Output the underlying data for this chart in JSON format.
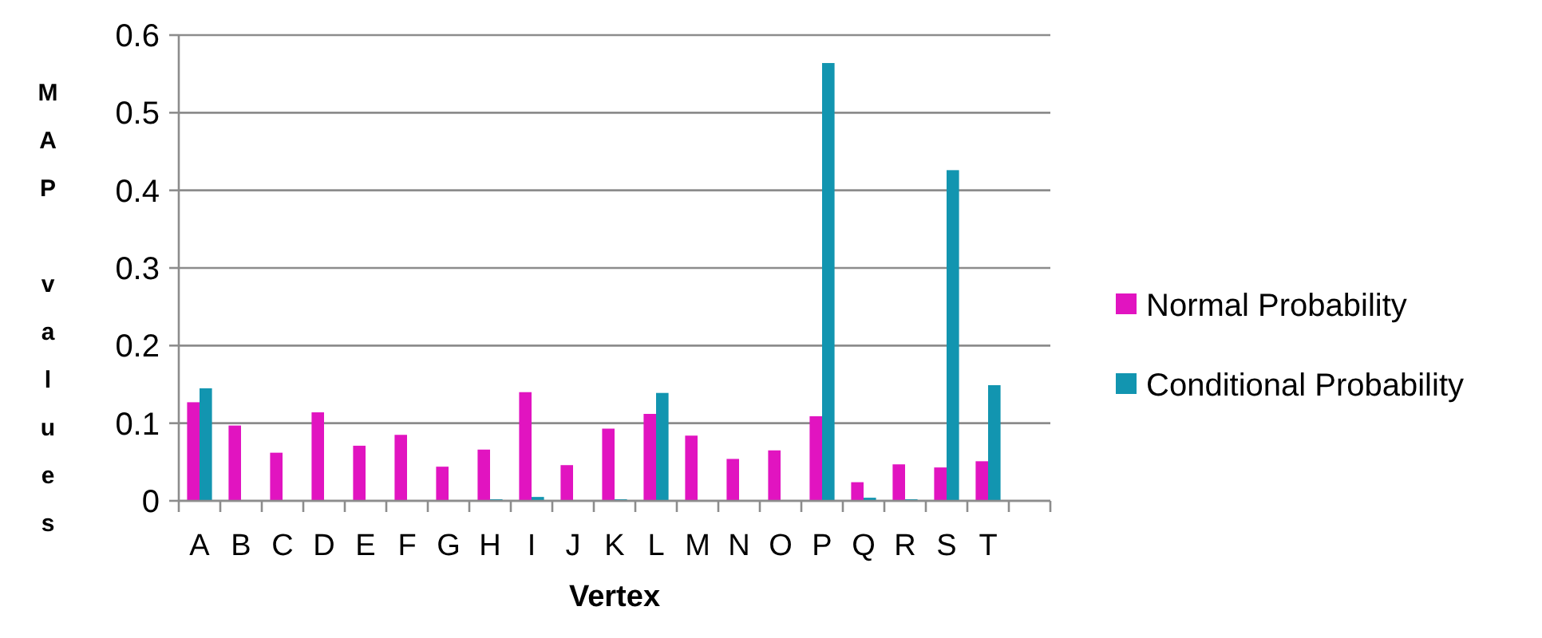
{
  "chart_data": {
    "type": "bar",
    "xlabel": "Vertex",
    "ylabel": "MAP values",
    "categories": [
      "A",
      "B",
      "C",
      "D",
      "E",
      "F",
      "G",
      "H",
      "I",
      "J",
      "K",
      "L",
      "M",
      "N",
      "O",
      "P",
      "Q",
      "R",
      "S",
      "T",
      null
    ],
    "series": [
      {
        "name": "Normal Probability",
        "color": "#e114c0",
        "values": [
          0.127,
          0.097,
          0.062,
          0.114,
          0.071,
          0.085,
          0.044,
          0.066,
          0.14,
          0.046,
          0.093,
          0.112,
          0.084,
          0.054,
          0.065,
          0.109,
          0.024,
          0.047,
          0.043,
          0.051,
          null
        ]
      },
      {
        "name": "Conditional Probability",
        "color": "#1295b0",
        "values": [
          0.145,
          0,
          0,
          0,
          0,
          0,
          0,
          0.002,
          0.005,
          0,
          0.002,
          0.139,
          0,
          0,
          0,
          0.564,
          0.004,
          0.002,
          0.426,
          0.149,
          null
        ]
      }
    ],
    "ylim": [
      0,
      0.6
    ],
    "yticks": [
      0,
      {
        "value": 0.1,
        "label": "0.1"
      },
      {
        "value": 0.2,
        "label": "0.2"
      },
      {
        "value": 0.3,
        "label": "0.3"
      },
      {
        "value": 0.4,
        "label": "0.4"
      },
      {
        "value": 0.5,
        "label": "0.5"
      },
      {
        "value": 0.6,
        "label": "0.6"
      }
    ],
    "grid": "y",
    "legend": "right"
  }
}
